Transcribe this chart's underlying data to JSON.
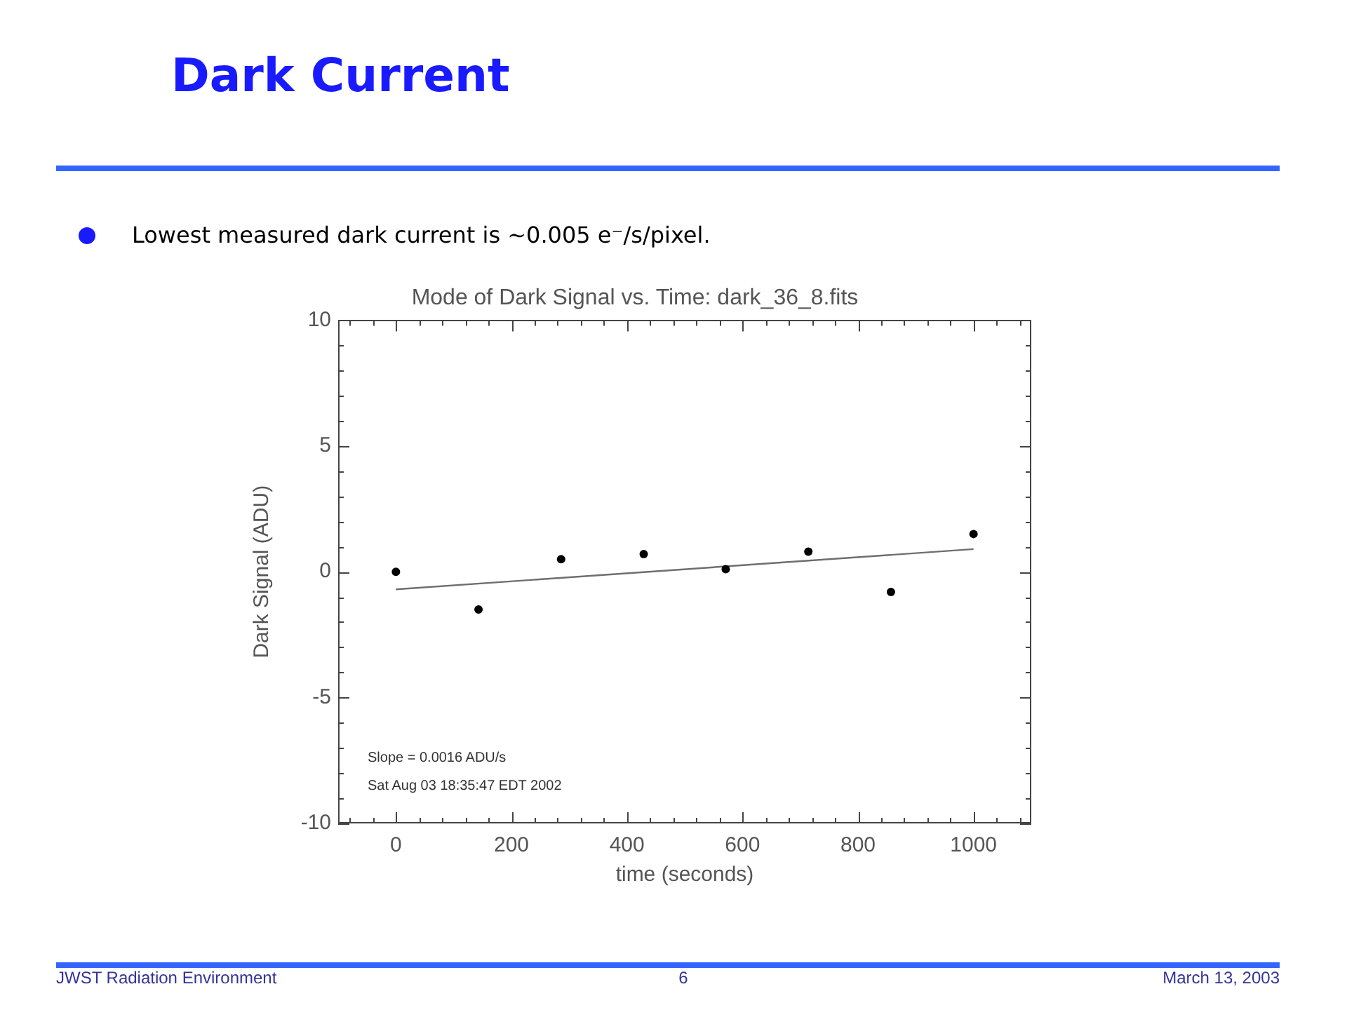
{
  "chart_data": {
    "type": "scatter",
    "title": "Mode of Dark Signal vs. Time: dark_36_8.fits",
    "xlabel": "time (seconds)",
    "ylabel": "Dark Signal (ADU)",
    "x": [
      0,
      143,
      286,
      429,
      571,
      714,
      857,
      1000
    ],
    "series": [
      {
        "color": "#000000",
        "marker": "circle",
        "values": [
          0,
          -1.5,
          0.5,
          0.7,
          0.1,
          0.8,
          -0.8,
          1.5
        ]
      },
      {
        "type": "line",
        "color": "#6e6e6e",
        "marker": "none",
        "x": [
          0,
          1000
        ],
        "values": [
          -0.7,
          0.9
        ]
      }
    ],
    "xlim": [
      -100,
      1100
    ],
    "ylim": [
      -10,
      10
    ],
    "xticks": [
      {
        "value": -80,
        "label": null
      },
      {
        "value": -40,
        "label": null
      },
      0,
      {
        "value": 40,
        "label": null
      },
      {
        "value": 80,
        "label": null
      },
      {
        "value": 120,
        "label": null
      },
      {
        "value": 160,
        "label": null
      },
      200,
      {
        "value": 240,
        "label": null
      },
      {
        "value": 280,
        "label": null
      },
      {
        "value": 320,
        "label": null
      },
      {
        "value": 360,
        "label": null
      },
      400,
      {
        "value": 440,
        "label": null
      },
      {
        "value": 480,
        "label": null
      },
      {
        "value": 520,
        "label": null
      },
      {
        "value": 560,
        "label": null
      },
      600,
      {
        "value": 640,
        "label": null
      },
      {
        "value": 680,
        "label": null
      },
      {
        "value": 720,
        "label": null
      },
      {
        "value": 760,
        "label": null
      },
      800,
      {
        "value": 840,
        "label": null
      },
      {
        "value": 880,
        "label": null
      },
      {
        "value": 920,
        "label": null
      },
      {
        "value": 960,
        "label": null
      },
      1000,
      {
        "value": 1040,
        "label": null
      },
      {
        "value": 1080,
        "label": null
      }
    ],
    "yticks": [
      -10,
      {
        "value": -9,
        "label": null
      },
      {
        "value": -8,
        "label": null
      },
      {
        "value": -7,
        "label": null
      },
      {
        "value": -6,
        "label": null
      },
      -5,
      {
        "value": -4,
        "label": null
      },
      {
        "value": -3,
        "label": null
      },
      {
        "value": -2,
        "label": null
      },
      {
        "value": -1,
        "label": null
      },
      0,
      {
        "value": 1,
        "label": null
      },
      {
        "value": 2,
        "label": null
      },
      {
        "value": 3,
        "label": null
      },
      {
        "value": 4,
        "label": null
      },
      5,
      {
        "value": 6,
        "label": null
      },
      {
        "value": 7,
        "label": null
      },
      {
        "value": 8,
        "label": null
      },
      {
        "value": 9,
        "label": null
      },
      10
    ],
    "annotations": [
      "Dark Current",
      "Lowest measured dark current is ~0.005 e⁻/s/pixel.",
      "Slope = 0.0016 ADU/s",
      "Sat Aug 03 18:35:47 EDT 2002",
      "JWST Radiation Environment",
      "6",
      "March 13, 2003"
    ]
  }
}
